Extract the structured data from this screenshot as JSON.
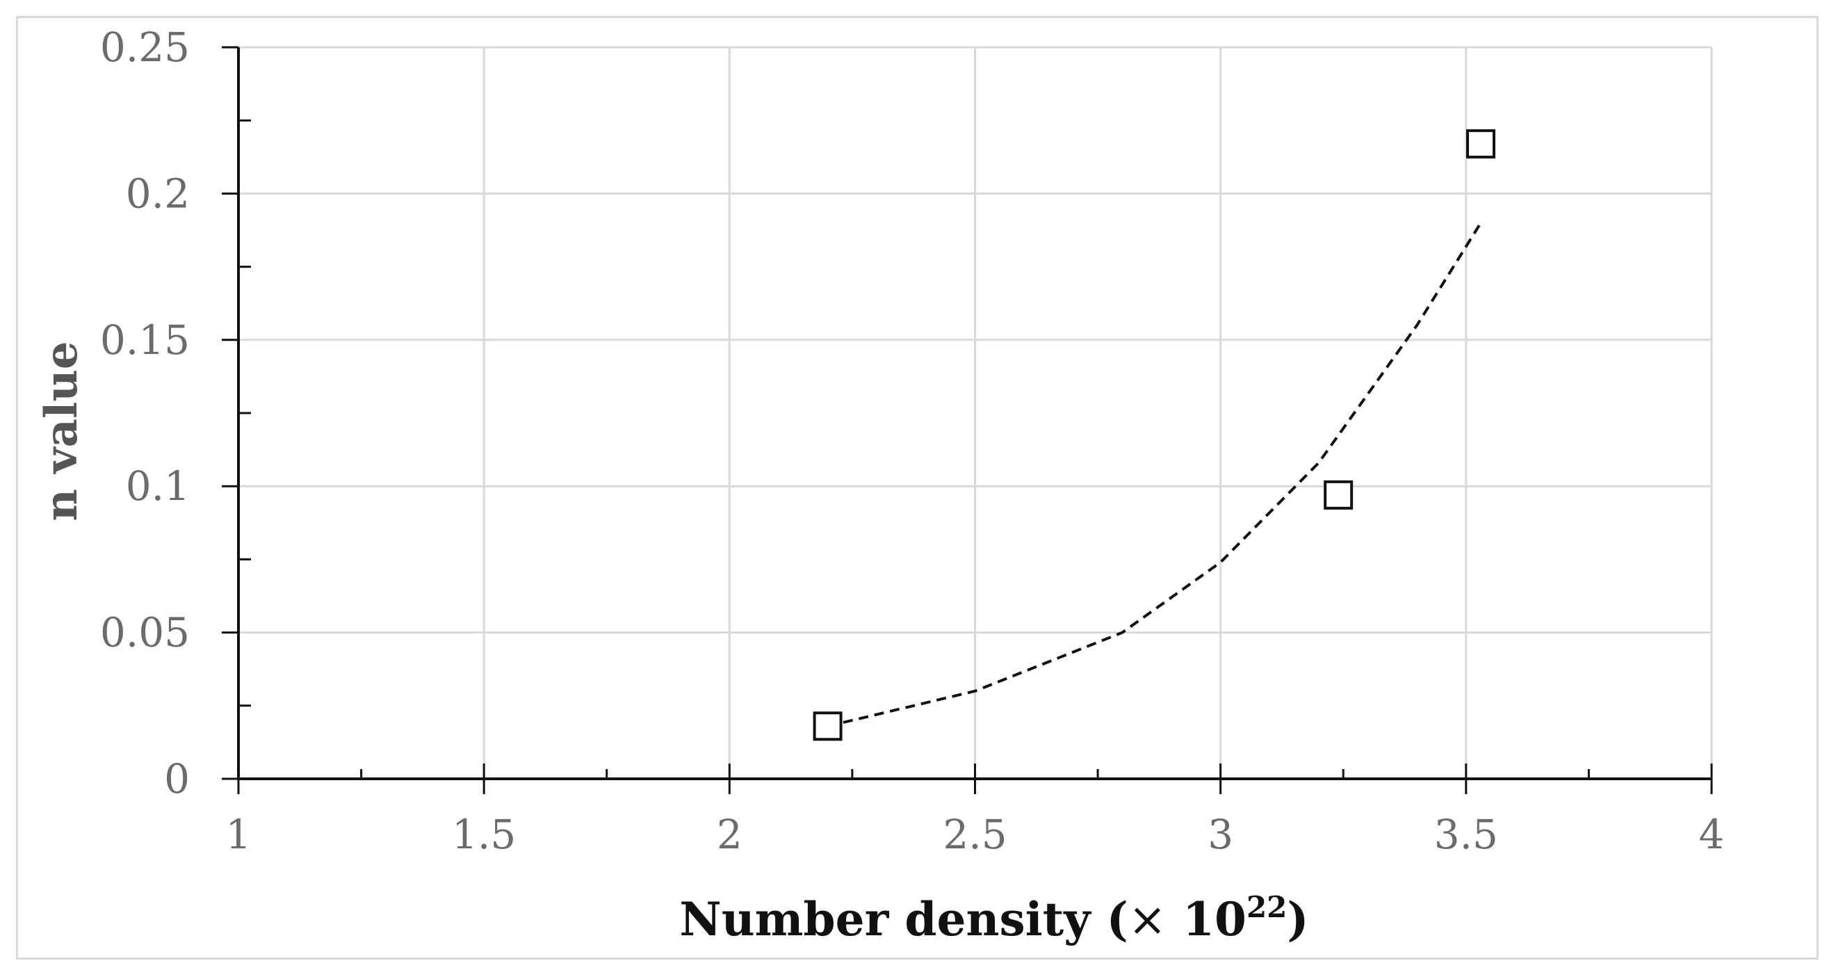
{
  "chart_data": {
    "type": "scatter",
    "xlabel": {
      "main": "Number density (",
      "times": "×",
      "base": " 10",
      "exp": "22",
      "close": ")"
    },
    "ylabel": "n value",
    "xlim": [
      1,
      4
    ],
    "ylim": [
      0,
      0.25
    ],
    "xticks": [
      "1",
      "1.5",
      "2",
      "2.5",
      "3",
      "3.5",
      "4"
    ],
    "yticks": [
      "0",
      "0.05",
      "0.1",
      "0.15",
      "0.2",
      "0.25"
    ],
    "grid": true,
    "series": [
      {
        "marker": "square-open",
        "x": [
          2.2,
          3.24,
          3.53
        ],
        "y": [
          0.018,
          0.097,
          0.217
        ]
      }
    ],
    "trendline": {
      "style": "dashed",
      "kind": "exponential",
      "x": [
        2.2,
        2.5,
        2.8,
        3.0,
        3.2,
        3.4,
        3.53
      ],
      "y": [
        0.018,
        0.03,
        0.05,
        0.074,
        0.108,
        0.155,
        0.19
      ]
    },
    "colors": {
      "grid": "#d9d9d9",
      "axis": "#111111",
      "ticks_text": "#6b6b6b",
      "marker": "#111111"
    }
  }
}
